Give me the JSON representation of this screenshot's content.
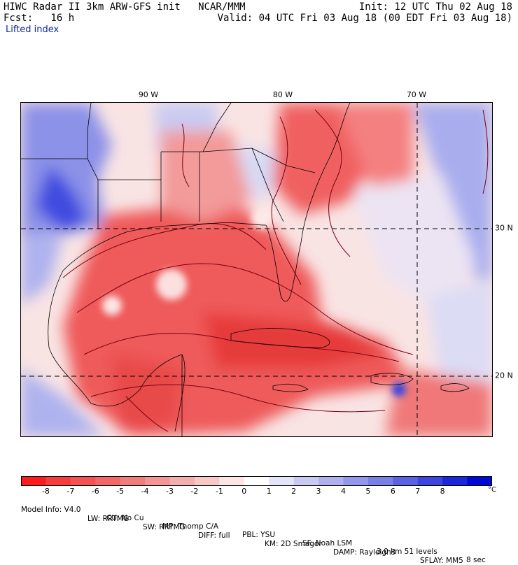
{
  "header": {
    "title_left": "HIWC Radar II 3km ARW-GFS init   NCAR/MMM",
    "fcst": "Fcst:   16 h",
    "init": "Init: 12 UTC Thu 02 Aug 18",
    "valid": "Valid: 04 UTC Fri 03 Aug 18 (00 EDT Fri 03 Aug 18)"
  },
  "field_name": "Lifted index",
  "map": {
    "longitude_labels": [
      {
        "text": "90 W",
        "lon": -90
      },
      {
        "text": "80 W",
        "lon": -80
      },
      {
        "text": "70 W",
        "lon": -70
      }
    ],
    "latitude_labels": [
      {
        "text": "30 N",
        "lat": 30
      },
      {
        "text": "20 N",
        "lat": 20
      }
    ],
    "colors": {
      "strong_negative": "#e0202a",
      "negative": "#f07070",
      "weak_negative": "#f8b4b4",
      "neutral": "#fbeaea",
      "weak_positive": "#cfd0f2",
      "positive": "#8f95ea",
      "strong_positive": "#2f3be0",
      "contour": "#7a0010",
      "border": "#000000"
    }
  },
  "colorbar": {
    "ticks": [
      "-8",
      "-7",
      "-6",
      "-5",
      "-4",
      "-3",
      "-2",
      "-1",
      "0",
      "1",
      "2",
      "3",
      "4",
      "5",
      "6",
      "7",
      "8"
    ],
    "unit": "°C",
    "colors": [
      "#ff1b1b",
      "#f83c3c",
      "#f55252",
      "#f36767",
      "#f17c7c",
      "#f19595",
      "#f3aeae",
      "#f7c8c8",
      "#fbe5e5",
      "#ffffff",
      "#e4e5f8",
      "#c8caf3",
      "#aeb1ee",
      "#9398ea",
      "#787fe6",
      "#5a62e3",
      "#3c45e0",
      "#1c26dc",
      "#0008d8"
    ]
  },
  "footer": {
    "line1": [
      "Model Info: V4.0",
      "CU: No Cu",
      "MP: Thomp C/A",
      "PBL: YSU",
      "SF: Noah LSM",
      "3.0 km  51 levels",
      "8 sec"
    ],
    "line2": [
      "LW: RRTMG",
      "SW: RRTMG",
      "DIFF: full",
      "KM: 2D Smagor",
      "DAMP: Rayleigh3",
      "SFLAY: MM5"
    ]
  }
}
